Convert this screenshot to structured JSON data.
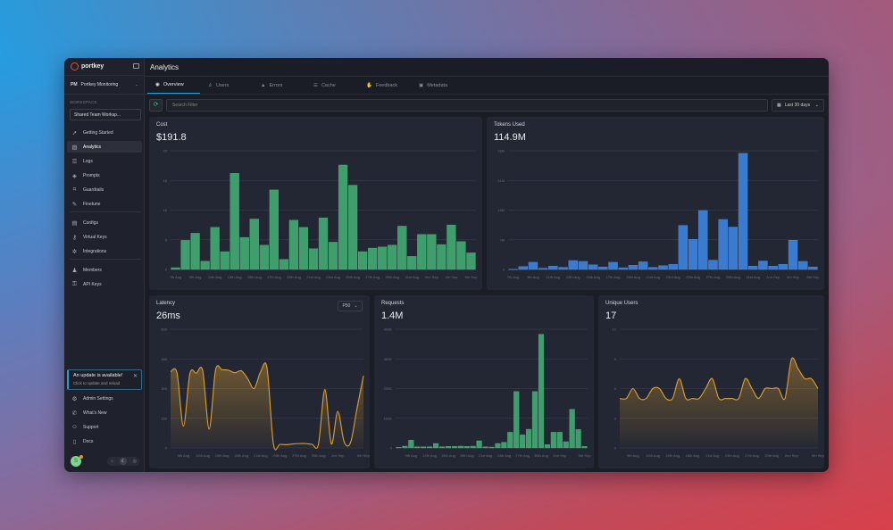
{
  "app": {
    "logo": "portkey",
    "page_title": "Analytics"
  },
  "org": {
    "initials": "PM",
    "name": "Portkey Monitoring"
  },
  "workspace": {
    "label": "WORKSPACE",
    "value": "Shared Team Worksp..."
  },
  "sidebar": {
    "items": [
      {
        "label": "Getting Started",
        "icon": "rocket-icon",
        "glyph": "➚"
      },
      {
        "label": "Analytics",
        "icon": "chart-icon",
        "glyph": "▨",
        "active": true
      },
      {
        "label": "Logs",
        "icon": "database-icon",
        "glyph": "☰"
      },
      {
        "label": "Prompts",
        "icon": "shapes-icon",
        "glyph": "◈"
      },
      {
        "label": "Guardrails",
        "icon": "guardrail-icon",
        "glyph": "⌗"
      },
      {
        "label": "Finetune",
        "icon": "wrench-icon",
        "glyph": "✎"
      },
      {
        "label": "Configs",
        "icon": "config-icon",
        "glyph": "▤"
      },
      {
        "label": "Virtual Keys",
        "icon": "key-icon",
        "glyph": "⚷"
      },
      {
        "label": "Integrations",
        "icon": "puzzle-icon",
        "glyph": "✲"
      },
      {
        "label": "Members",
        "icon": "users-icon",
        "glyph": "♟"
      },
      {
        "label": "API Keys",
        "icon": "key-icon",
        "glyph": "⚿"
      }
    ],
    "bottom": [
      {
        "label": "Admin Settings",
        "icon": "gear-icon",
        "glyph": "⚙"
      },
      {
        "label": "What's New",
        "icon": "megaphone-icon",
        "glyph": "✆"
      },
      {
        "label": "Support",
        "icon": "discord-icon",
        "glyph": "☺"
      },
      {
        "label": "Docs",
        "icon": "book-icon",
        "glyph": "▯"
      }
    ]
  },
  "update": {
    "title": "An update is available!",
    "subtitle": "Click to update and reload"
  },
  "user": {
    "initial": "S"
  },
  "tabs": [
    {
      "label": "Overview",
      "glyph": "◉",
      "active": true
    },
    {
      "label": "Users",
      "glyph": "♙"
    },
    {
      "label": "Errors",
      "glyph": "▲"
    },
    {
      "label": "Cache",
      "glyph": "☰"
    },
    {
      "label": "Feedback",
      "glyph": "✋"
    },
    {
      "label": "Metadata",
      "glyph": "▣"
    }
  ],
  "filter": {
    "placeholder": "Search Filter",
    "range": "Last 30 days"
  },
  "cards": {
    "cost": {
      "label": "Cost",
      "value": "$191.8"
    },
    "tokens": {
      "label": "Tokens Used",
      "value": "114.9M"
    },
    "latency": {
      "label": "Latency",
      "value": "26ms",
      "percentile": "P50"
    },
    "requests": {
      "label": "Requests",
      "value": "1.4M"
    },
    "users": {
      "label": "Unique Users",
      "value": "17"
    }
  },
  "chart_data": [
    {
      "id": "cost",
      "type": "bar",
      "color": "#3e9e6c",
      "ylim": [
        0,
        20
      ],
      "yticks": [
        "0",
        "5",
        "10",
        "15",
        "20"
      ],
      "xticks": [
        "7th Aug",
        "9th Aug",
        "11th Aug",
        "13th Aug",
        "15th Aug",
        "17th Aug",
        "19th Aug",
        "21st Aug",
        "23rd Aug",
        "25th Aug",
        "27th Aug",
        "29th Aug",
        "31st Aug",
        "2nd Sep",
        "4th Sep",
        "6th Sep"
      ],
      "xtick_every": 2,
      "values": [
        0.3,
        4.9,
        6.1,
        1.4,
        7.1,
        3.0,
        16.2,
        5.4,
        8.5,
        4.1,
        13.4,
        1.7,
        8.3,
        7.1,
        3.5,
        8.7,
        4.6,
        17.6,
        14.2,
        3.0,
        3.6,
        3.8,
        4.1,
        7.3,
        2.2,
        5.9,
        5.9,
        4.2,
        7.5,
        4.7,
        2.8
      ]
    },
    {
      "id": "tokens",
      "type": "bar",
      "color": "#3a7bd0",
      "ylim": [
        0,
        28
      ],
      "yticks": [
        "0",
        "7M",
        "14M",
        "21M",
        "28M"
      ],
      "xticks": [
        "7th Aug",
        "9th Aug",
        "11th Aug",
        "13th Aug",
        "15th Aug",
        "17th Aug",
        "19th Aug",
        "21st Aug",
        "23rd Aug",
        "25th Aug",
        "27th Aug",
        "29th Aug",
        "31st Aug",
        "2nd Sep",
        "4th Sep",
        "6th Sep"
      ],
      "xtick_every": 2,
      "values": [
        0.05,
        0.7,
        1.7,
        0.3,
        0.8,
        0.5,
        2.1,
        1.9,
        1.1,
        0.6,
        1.7,
        0.4,
        1.0,
        1.8,
        0.5,
        0.9,
        1.2,
        10.4,
        7.1,
        13.9,
        2.2,
        11.8,
        10.0,
        27.4,
        0.8,
        2.0,
        0.8,
        1.2,
        6.9,
        1.9,
        0.6
      ]
    },
    {
      "id": "latency",
      "type": "area",
      "color": "#e0a030",
      "ylim": [
        0,
        600
      ],
      "yticks": [
        "0",
        "150",
        "300",
        "450",
        "600"
      ],
      "xticks": [
        "9th Aug",
        "12th Aug",
        "15th Aug",
        "18th Aug",
        "21st Aug",
        "24th Aug",
        "27th Aug",
        "30th Aug",
        "2nd Sep",
        "6th Sep"
      ],
      "xtick_days": [
        2,
        5,
        8,
        11,
        14,
        17,
        20,
        23,
        26,
        30
      ],
      "values": [
        385,
        380,
        110,
        375,
        378,
        390,
        95,
        395,
        395,
        393,
        380,
        390,
        350,
        300,
        385,
        405,
        18,
        18,
        16,
        20,
        22,
        22,
        18,
        18,
        295,
        20,
        185,
        30,
        28,
        200,
        365
      ]
    },
    {
      "id": "requests",
      "type": "bar",
      "color": "#3e9e6c",
      "ylim": [
        0,
        400
      ],
      "yticks": [
        "0",
        "100K",
        "200K",
        "300K",
        "400K"
      ],
      "xticks": [
        "9th Aug",
        "12th Aug",
        "15th Aug",
        "18th Aug",
        "21st Aug",
        "24th Aug",
        "27th Aug",
        "30th Aug",
        "2nd Sep",
        "6th Sep"
      ],
      "xtick_days": [
        2,
        5,
        8,
        11,
        14,
        17,
        20,
        23,
        26,
        30
      ],
      "values": [
        2,
        6,
        26,
        4,
        4,
        4,
        15,
        4,
        5,
        5,
        6,
        5,
        6,
        24,
        4,
        3,
        15,
        19,
        53,
        190,
        44,
        63,
        190,
        383,
        11,
        53,
        53,
        21,
        130,
        62,
        5
      ]
    },
    {
      "id": "users",
      "type": "area",
      "color": "#e0a030",
      "ylim": [
        0,
        12
      ],
      "yticks": [
        "0",
        "3",
        "6",
        "9",
        "12"
      ],
      "xticks": [
        "9th Aug",
        "12th Aug",
        "15th Aug",
        "18th Aug",
        "21st Aug",
        "24th Aug",
        "27th Aug",
        "30th Aug",
        "2nd Sep",
        "6th Sep"
      ],
      "xtick_days": [
        2,
        5,
        8,
        11,
        14,
        17,
        20,
        23,
        26,
        30
      ],
      "values": [
        5,
        5,
        6,
        5,
        5,
        6,
        6,
        5,
        5,
        7,
        5,
        5,
        5,
        6,
        7,
        5,
        5,
        5,
        5,
        7,
        6,
        5,
        6,
        6,
        6,
        5,
        9,
        8,
        7,
        7,
        6
      ]
    }
  ]
}
